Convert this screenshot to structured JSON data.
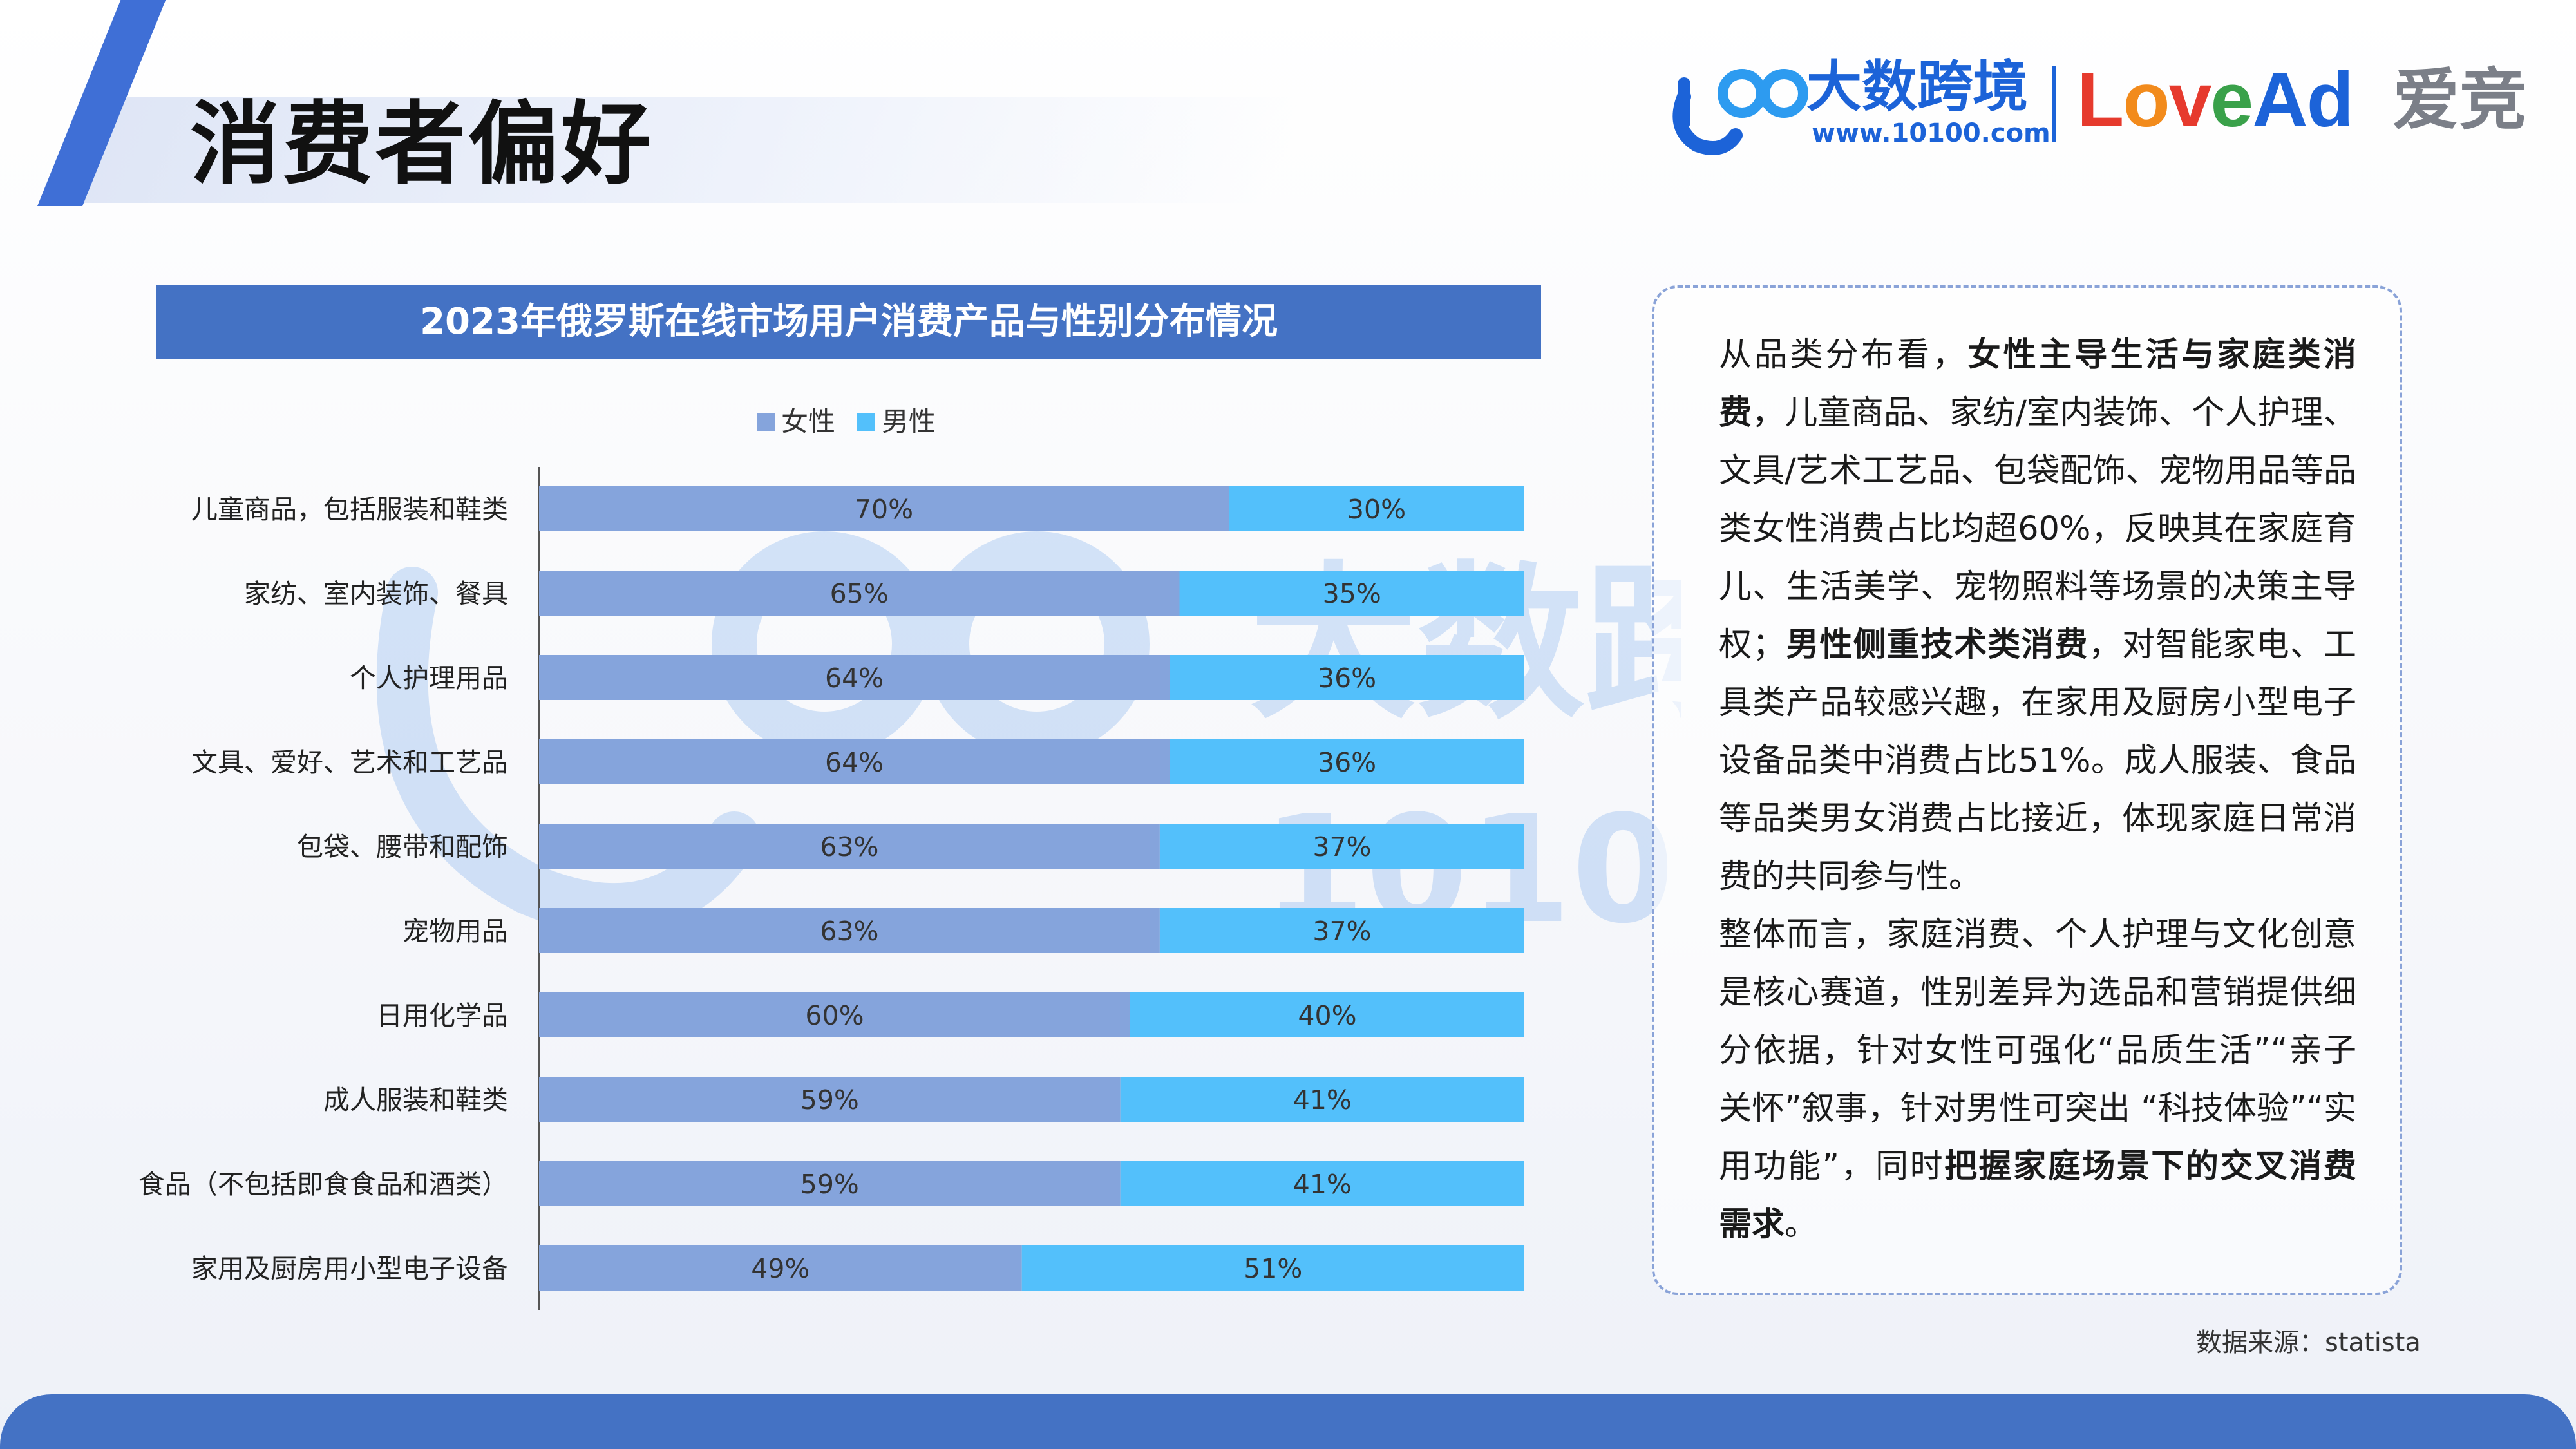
{
  "page": {
    "title": "消费者偏好",
    "source": "数据来源：statista"
  },
  "logo": {
    "brand_cn": "大数跨境",
    "url": "www.10100.com",
    "lovead_parts": [
      "L",
      "o",
      "v",
      "e",
      "A",
      "d"
    ],
    "aijing": "爱竞",
    "watermark_text": "大数跨",
    "watermark_num": "10100",
    "colors": {
      "brand_blue": "#1c63d8",
      "lovead_red": "#e63a2d",
      "lovead_orange": "#f28b1c",
      "lovead_green": "#3aa14a"
    }
  },
  "chart_data": {
    "type": "bar",
    "orientation": "horizontal",
    "stacked": true,
    "title": "2023年俄罗斯在线市场用户消费产品与性别分布情况",
    "legend_position": "top",
    "categories": [
      "儿童商品，包括服装和鞋类",
      "家纺、室内装饰、餐具",
      "个人护理用品",
      "文具、爱好、艺术和工艺品",
      "包袋、腰带和配饰",
      "宠物用品",
      "日用化学品",
      "成人服装和鞋类",
      "食品（不包括即食食品和酒类）",
      "家用及厨房用小型电子设备"
    ],
    "series": [
      {
        "name": "女性",
        "color": "#85a4dc",
        "values": [
          70,
          65,
          64,
          64,
          63,
          63,
          60,
          59,
          59,
          49
        ],
        "labels": [
          "70%",
          "65%",
          "64%",
          "64%",
          "63%",
          "63%",
          "60%",
          "59%",
          "59%",
          "49%"
        ]
      },
      {
        "name": "男性",
        "color": "#53c0fb",
        "values": [
          30,
          35,
          36,
          36,
          37,
          37,
          40,
          41,
          41,
          51
        ],
        "labels": [
          "30%",
          "35%",
          "36%",
          "36%",
          "37%",
          "37%",
          "40%",
          "41%",
          "41%",
          "51%"
        ]
      }
    ],
    "xlim": [
      0,
      100
    ]
  },
  "analysis": {
    "p1_parts": [
      {
        "text": "从品类分布看，",
        "bold": false
      },
      {
        "text": "女性主导生活与家庭类消费",
        "bold": true
      },
      {
        "text": "，儿童商品、家纺/室内装饰、个人护理、文具/艺术工艺品、包袋配饰、宠物用品等品类女性消费占比均超60%，反映其在家庭育儿、生活美学、宠物照料等场景的决策主导权；",
        "bold": false
      },
      {
        "text": "男性侧重技术类消费",
        "bold": true
      },
      {
        "text": "，对智能家电、工具类产品较感兴趣，在家用及厨房小型电子设备品类中消费占比51%。成人服装、食品等品类男女消费占比接近，体现家庭日常消费的共同参与性。",
        "bold": false
      }
    ],
    "p2_parts": [
      {
        "text": "整体而言，家庭消费、个人护理与文化创意是核心赛道，性别差异为选品和营销提供细分依据，针对女性可强化“品质生活”“亲子关怀”叙事，针对男性可突出 “科技体验”“实用功能”，同时",
        "bold": false
      },
      {
        "text": "把握家庭场景下的交叉消费需求",
        "bold": true
      },
      {
        "text": "。",
        "bold": false
      }
    ]
  }
}
